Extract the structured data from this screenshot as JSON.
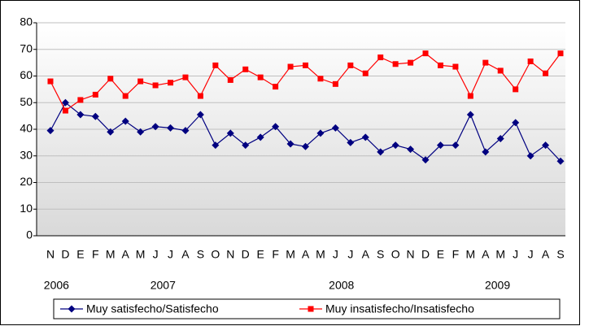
{
  "chart_data": {
    "type": "line",
    "categories": [
      "N",
      "D",
      "E",
      "F",
      "M",
      "A",
      "M",
      "J",
      "J",
      "A",
      "S",
      "O",
      "N",
      "D",
      "E",
      "F",
      "M",
      "A",
      "M",
      "J",
      "J",
      "A",
      "S",
      "O",
      "N",
      "D",
      "E",
      "F",
      "M",
      "A",
      "M",
      "J",
      "J",
      "A",
      "S"
    ],
    "year_labels": [
      "2006",
      "2007",
      "2008",
      "2009"
    ],
    "series": [
      {
        "name": "Muy satisfecho/Satisfecho",
        "color": "#000080",
        "marker": "diamond",
        "values": [
          39.5,
          50,
          45.5,
          44.8,
          39,
          43,
          39,
          41,
          40.5,
          39.5,
          45.5,
          34,
          38.5,
          34,
          37,
          41,
          34.5,
          33.5,
          38.5,
          40.5,
          35,
          37,
          31.5,
          34,
          32.5,
          28.5,
          34,
          34,
          45.5,
          31.5,
          36.5,
          42.5,
          30,
          34,
          28
        ]
      },
      {
        "name": "Muy insatisfecho/Insatisfecho",
        "color": "#ff0000",
        "marker": "square",
        "values": [
          58,
          47,
          51,
          53,
          59,
          52.5,
          58,
          56.5,
          57.5,
          59.5,
          52.5,
          64,
          58.5,
          62.5,
          59.5,
          56,
          63.5,
          64,
          59,
          57,
          64,
          61,
          67,
          64.5,
          65,
          68.5,
          64,
          63.5,
          52.5,
          65,
          62,
          55,
          65.5,
          61,
          68.5
        ]
      }
    ],
    "ylim": [
      0,
      80
    ],
    "yticks": [
      0,
      10,
      20,
      30,
      40,
      50,
      60,
      70,
      80
    ],
    "grid": true
  }
}
